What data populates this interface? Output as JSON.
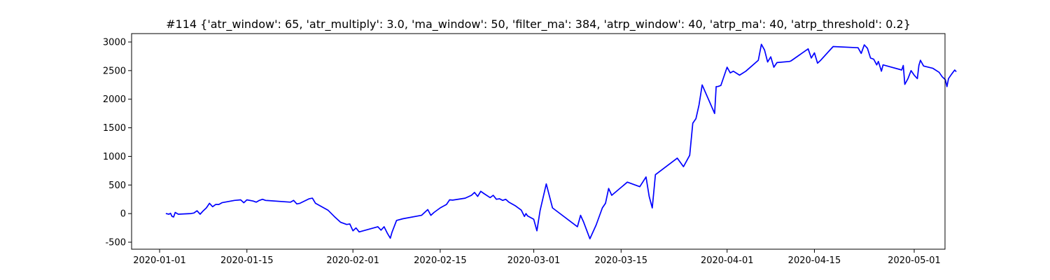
{
  "chart_data": {
    "type": "line",
    "title": "#114 {'atr_window': 65, 'atr_multiply': 3.0, 'ma_window': 50, 'filter_ma': 384, 'atrp_window': 40, 'atrp_ma': 40, 'atrp_threshold': 0.2}",
    "xlabel": "",
    "ylabel": "",
    "x_type": "date",
    "xlim": [
      "2019-12-28",
      "2020-05-04"
    ],
    "ylim": [
      -620,
      3150
    ],
    "grid": false,
    "legend": "none",
    "x_ticks": [
      {
        "date": "2020-01-01",
        "label": "2020-01-01"
      },
      {
        "date": "2020-01-15",
        "label": "2020-01-15"
      },
      {
        "date": "2020-02-01",
        "label": "2020-02-01"
      },
      {
        "date": "2020-02-15",
        "label": "2020-02-15"
      },
      {
        "date": "2020-03-01",
        "label": "2020-03-01"
      },
      {
        "date": "2020-03-15",
        "label": "2020-03-15"
      },
      {
        "date": "2020-04-01",
        "label": "2020-04-01"
      },
      {
        "date": "2020-04-15",
        "label": "2020-04-15"
      },
      {
        "date": "2020-05-01",
        "label": "2020-05-01"
      }
    ],
    "y_ticks": [
      {
        "value": 3000,
        "label": "3000"
      },
      {
        "value": 2500,
        "label": "2500"
      },
      {
        "value": 2000,
        "label": "2000"
      },
      {
        "value": 1500,
        "label": "1500"
      },
      {
        "value": 1000,
        "label": "1000"
      },
      {
        "value": 500,
        "label": "500"
      },
      {
        "value": 0,
        "label": "0"
      },
      {
        "value": -500,
        "label": "-500"
      }
    ],
    "series": [
      {
        "color": "#0000ff",
        "points": [
          [
            "2020-01-02",
            0
          ],
          [
            "2020-01-02 12:00",
            -10
          ],
          [
            "2020-01-02 18:00",
            5
          ],
          [
            "2020-01-03",
            -50
          ],
          [
            "2020-01-03 06:00",
            -60
          ],
          [
            "2020-01-03 12:00",
            20
          ],
          [
            "2020-01-04",
            -10
          ],
          [
            "2020-01-06",
            0
          ],
          [
            "2020-01-06 12:00",
            10
          ],
          [
            "2020-01-07",
            50
          ],
          [
            "2020-01-07 12:00",
            -10
          ],
          [
            "2020-01-08",
            50
          ],
          [
            "2020-01-08 12:00",
            100
          ],
          [
            "2020-01-09",
            180
          ],
          [
            "2020-01-09 12:00",
            120
          ],
          [
            "2020-01-10",
            160
          ],
          [
            "2020-01-10 12:00",
            160
          ],
          [
            "2020-01-11",
            190
          ],
          [
            "2020-01-13",
            230
          ],
          [
            "2020-01-14",
            240
          ],
          [
            "2020-01-14 12:00",
            190
          ],
          [
            "2020-01-15",
            240
          ],
          [
            "2020-01-16",
            220
          ],
          [
            "2020-01-16 12:00",
            200
          ],
          [
            "2020-01-17",
            230
          ],
          [
            "2020-01-17 12:00",
            250
          ],
          [
            "2020-01-18",
            230
          ],
          [
            "2020-01-22",
            200
          ],
          [
            "2020-01-22 12:00",
            230
          ],
          [
            "2020-01-23",
            170
          ],
          [
            "2020-01-23 12:00",
            180
          ],
          [
            "2020-01-25",
            260
          ],
          [
            "2020-01-25 12:00",
            270
          ],
          [
            "2020-01-26",
            180
          ],
          [
            "2020-01-28",
            60
          ],
          [
            "2020-01-29",
            -50
          ],
          [
            "2020-01-30",
            -150
          ],
          [
            "2020-01-31",
            -190
          ],
          [
            "2020-01-31 12:00",
            -180
          ],
          [
            "2020-02-01",
            -300
          ],
          [
            "2020-02-01 12:00",
            -250
          ],
          [
            "2020-02-02",
            -320
          ],
          [
            "2020-02-05",
            -230
          ],
          [
            "2020-02-05 12:00",
            -290
          ],
          [
            "2020-02-06",
            -230
          ],
          [
            "2020-02-06 12:00",
            -340
          ],
          [
            "2020-02-07",
            -430
          ],
          [
            "2020-02-07 06:00",
            -330
          ],
          [
            "2020-02-08",
            -120
          ],
          [
            "2020-02-09",
            -90
          ],
          [
            "2020-02-12",
            -30
          ],
          [
            "2020-02-13",
            70
          ],
          [
            "2020-02-13 12:00",
            -30
          ],
          [
            "2020-02-14",
            20
          ],
          [
            "2020-02-15",
            100
          ],
          [
            "2020-02-16",
            160
          ],
          [
            "2020-02-16 12:00",
            240
          ],
          [
            "2020-02-17",
            235
          ],
          [
            "2020-02-19",
            270
          ],
          [
            "2020-02-20",
            320
          ],
          [
            "2020-02-20 12:00",
            370
          ],
          [
            "2020-02-21",
            300
          ],
          [
            "2020-02-21 12:00",
            390
          ],
          [
            "2020-02-22",
            350
          ],
          [
            "2020-02-23",
            280
          ],
          [
            "2020-02-23 12:00",
            320
          ],
          [
            "2020-02-24",
            250
          ],
          [
            "2020-02-24 12:00",
            260
          ],
          [
            "2020-02-25",
            230
          ],
          [
            "2020-02-25 12:00",
            250
          ],
          [
            "2020-02-26",
            200
          ],
          [
            "2020-02-27",
            140
          ],
          [
            "2020-02-28",
            60
          ],
          [
            "2020-02-28 12:00",
            -50
          ],
          [
            "2020-02-28 18:00",
            0
          ],
          [
            "2020-02-29",
            -40
          ],
          [
            "2020-03-01",
            -100
          ],
          [
            "2020-03-01 12:00",
            -300
          ],
          [
            "2020-03-02",
            50
          ],
          [
            "2020-03-03",
            520
          ],
          [
            "2020-03-04",
            100
          ],
          [
            "2020-03-08",
            -230
          ],
          [
            "2020-03-08 12:00",
            -30
          ],
          [
            "2020-03-09",
            -150
          ],
          [
            "2020-03-10",
            -440
          ],
          [
            "2020-03-11",
            -200
          ],
          [
            "2020-03-12",
            100
          ],
          [
            "2020-03-12 12:00",
            180
          ],
          [
            "2020-03-13",
            440
          ],
          [
            "2020-03-13 12:00",
            320
          ],
          [
            "2020-03-16",
            550
          ],
          [
            "2020-03-18",
            470
          ],
          [
            "2020-03-19",
            640
          ],
          [
            "2020-03-19 12:00",
            300
          ],
          [
            "2020-03-20",
            100
          ],
          [
            "2020-03-20 06:00",
            380
          ],
          [
            "2020-03-20 12:00",
            680
          ],
          [
            "2020-03-24",
            970
          ],
          [
            "2020-03-25",
            820
          ],
          [
            "2020-03-26",
            1020
          ],
          [
            "2020-03-26 12:00",
            1580
          ],
          [
            "2020-03-27",
            1660
          ],
          [
            "2020-03-27 12:00",
            1900
          ],
          [
            "2020-03-28",
            2250
          ],
          [
            "2020-03-30",
            1750
          ],
          [
            "2020-03-30 06:00",
            2220
          ],
          [
            "2020-03-30 12:00",
            2220
          ],
          [
            "2020-03-31",
            2240
          ],
          [
            "2020-04-01",
            2560
          ],
          [
            "2020-04-01 12:00",
            2460
          ],
          [
            "2020-04-02",
            2490
          ],
          [
            "2020-04-03",
            2420
          ],
          [
            "2020-04-04",
            2490
          ],
          [
            "2020-04-06",
            2680
          ],
          [
            "2020-04-06 12:00",
            2960
          ],
          [
            "2020-04-07",
            2860
          ],
          [
            "2020-04-07 12:00",
            2650
          ],
          [
            "2020-04-08",
            2740
          ],
          [
            "2020-04-08 12:00",
            2560
          ],
          [
            "2020-04-09",
            2640
          ],
          [
            "2020-04-11",
            2660
          ],
          [
            "2020-04-11 06:00",
            2670
          ],
          [
            "2020-04-14",
            2880
          ],
          [
            "2020-04-14 12:00",
            2720
          ],
          [
            "2020-04-15",
            2810
          ],
          [
            "2020-04-15 12:00",
            2630
          ],
          [
            "2020-04-16",
            2680
          ],
          [
            "2020-04-18",
            2920
          ],
          [
            "2020-04-22",
            2900
          ],
          [
            "2020-04-22 12:00",
            2800
          ],
          [
            "2020-04-23",
            2950
          ],
          [
            "2020-04-23 12:00",
            2890
          ],
          [
            "2020-04-24",
            2720
          ],
          [
            "2020-04-24 12:00",
            2700
          ],
          [
            "2020-04-25",
            2600
          ],
          [
            "2020-04-25 06:00",
            2660
          ],
          [
            "2020-04-25 18:00",
            2490
          ],
          [
            "2020-04-26",
            2600
          ],
          [
            "2020-04-29",
            2510
          ],
          [
            "2020-04-29 06:00",
            2590
          ],
          [
            "2020-04-29 12:00",
            2260
          ],
          [
            "2020-04-30",
            2360
          ],
          [
            "2020-04-30 12:00",
            2500
          ],
          [
            "2020-05-01",
            2420
          ],
          [
            "2020-05-01 12:00",
            2360
          ],
          [
            "2020-05-01 18:00",
            2590
          ],
          [
            "2020-05-02",
            2680
          ],
          [
            "2020-05-02 12:00",
            2580
          ],
          [
            "2020-05-04",
            2540
          ],
          [
            "2020-05-05",
            2470
          ],
          [
            "2020-05-05 12:00",
            2390
          ],
          [
            "2020-05-06",
            2340
          ],
          [
            "2020-05-06 06:00",
            2220
          ],
          [
            "2020-05-06 12:00",
            2360
          ],
          [
            "2020-05-07",
            2440
          ],
          [
            "2020-05-07 12:00",
            2510
          ],
          [
            "2020-05-07 18:00",
            2480
          ]
        ]
      }
    ]
  }
}
